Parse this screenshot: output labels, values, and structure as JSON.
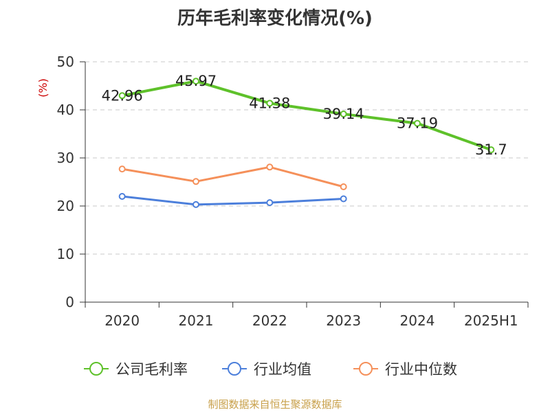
{
  "title": "历年毛利率变化情况(%)",
  "source": "制图数据来自恒生聚源数据库",
  "chart_data": {
    "type": "line",
    "title": "历年毛利率变化情况(%)",
    "ylabel": "(%)",
    "xlabel": "",
    "categories": [
      "2020",
      "2021",
      "2022",
      "2023",
      "2024",
      "2025H1"
    ],
    "ylim": [
      0,
      50
    ],
    "yticks": [
      0,
      10,
      20,
      30,
      40,
      50
    ],
    "grid": true,
    "legend_position": "bottom",
    "series": [
      {
        "name": "公司毛利率",
        "color": "#5ec12a",
        "values": [
          42.96,
          45.97,
          41.38,
          39.14,
          37.19,
          31.7
        ],
        "labels": [
          "42.96",
          "45.97",
          "41.38",
          "39.14",
          "37.19",
          "31.7"
        ]
      },
      {
        "name": "行业均值",
        "color": "#4c7fdb",
        "values": [
          22.0,
          20.3,
          20.7,
          21.5,
          null,
          null
        ]
      },
      {
        "name": "行业中位数",
        "color": "#f5905a",
        "values": [
          27.7,
          25.1,
          28.1,
          24.0,
          null,
          null
        ]
      }
    ]
  }
}
